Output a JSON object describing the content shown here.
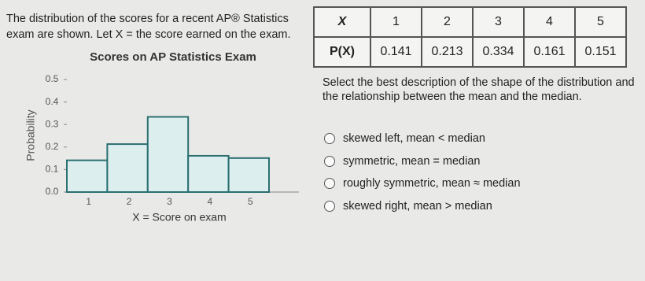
{
  "question": {
    "intro": "The distribution of the scores for a recent AP® Statistics exam are shown. Let X = the score earned on the exam.",
    "prompt": "Select the best description of the shape of the distribution and the relationship between the mean and the median.",
    "options": [
      "skewed left, mean < median",
      "symmetric, mean = median",
      "roughly symmetric, mean ≈ median",
      "skewed right, mean > median"
    ]
  },
  "table": {
    "row_headers": [
      "X",
      "P(X)"
    ]
  },
  "chart_data": {
    "type": "bar",
    "title": "Scores on AP Statistics Exam",
    "x_label": "X = Score on exam",
    "y_label": "Probability",
    "categories": [
      "1",
      "2",
      "3",
      "4",
      "5"
    ],
    "values": [
      0.141,
      0.213,
      0.334,
      0.161,
      0.151
    ],
    "color": "#dcefee",
    "edge_color": "#2b6f70",
    "ylim": [
      0,
      0.5
    ],
    "yticks": [
      {
        "value": 0,
        "label": "0.0"
      },
      0.1,
      0.2,
      0.3,
      0.4,
      0.5
    ]
  }
}
